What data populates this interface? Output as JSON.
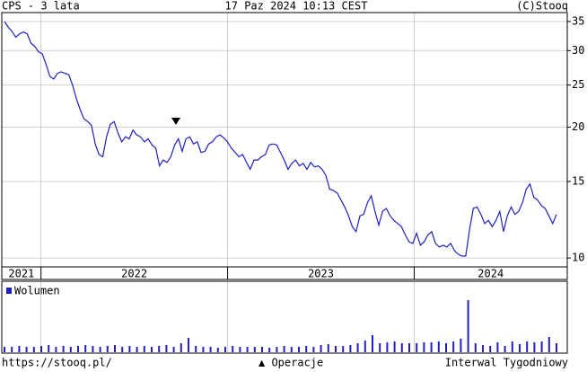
{
  "header": {
    "left": "CPS - 3 lata",
    "center": "17 Paz 2024 10:13 CEST",
    "right": "(C)Stooq"
  },
  "chart_data": [
    {
      "type": "line",
      "log_scale": true,
      "grid": true,
      "ylim": [
        9.54,
        36.7
      ],
      "yticks": [
        10,
        15,
        20,
        25,
        30,
        35
      ],
      "xlim": [
        2021.79,
        2024.82
      ],
      "xticks": [
        2021,
        2022,
        2023,
        2024
      ],
      "series": [
        {
          "color": "#2020c0",
          "values": [
            35.0,
            34.0,
            33.2,
            32.2,
            32.8,
            33.1,
            32.8,
            31.2,
            30.7,
            29.8,
            29.5,
            27.9,
            26.2,
            25.8,
            26.6,
            26.8,
            26.6,
            26.4,
            25.0,
            23.3,
            22.0,
            20.9,
            20.6,
            20.2,
            18.3,
            17.3,
            17.1,
            19.0,
            20.3,
            20.6,
            19.4,
            18.5,
            19.0,
            18.8,
            19.7,
            19.2,
            19.0,
            18.5,
            18.8,
            18.2,
            17.9,
            16.3,
            16.8,
            16.6,
            17.1,
            18.2,
            18.8,
            17.6,
            18.8,
            19.0,
            18.3,
            18.5,
            17.5,
            17.6,
            18.3,
            18.5,
            19.0,
            19.2,
            18.9,
            18.5,
            17.9,
            17.5,
            17.1,
            17.3,
            16.6,
            16.0,
            16.8,
            16.8,
            17.1,
            17.3,
            18.2,
            18.3,
            18.2,
            17.5,
            16.8,
            16.0,
            16.5,
            16.8,
            16.3,
            16.5,
            16.0,
            16.6,
            16.2,
            16.3,
            16.0,
            15.5,
            14.4,
            14.3,
            14.1,
            13.6,
            13.1,
            12.5,
            11.8,
            11.5,
            12.5,
            12.6,
            13.4,
            13.9,
            12.8,
            11.9,
            12.8,
            13.0,
            12.5,
            12.2,
            12.0,
            11.8,
            11.3,
            10.9,
            10.8,
            11.4,
            10.7,
            10.9,
            11.3,
            11.5,
            10.8,
            10.6,
            10.7,
            10.6,
            10.8,
            10.4,
            10.2,
            10.1,
            10.1,
            11.6,
            13.0,
            13.1,
            12.6,
            12.0,
            12.2,
            11.8,
            12.2,
            12.8,
            11.5,
            12.5,
            13.1,
            12.6,
            12.8,
            13.4,
            14.4,
            14.8,
            13.8,
            13.6,
            13.2,
            13.0,
            12.5,
            12.0,
            12.6
          ]
        }
      ]
    },
    {
      "type": "bar",
      "ylim": [
        0,
        60
      ],
      "series": [
        {
          "name": "Wolumen",
          "color": "#2020c0",
          "values": [
            6,
            6,
            7,
            6,
            6,
            7,
            8,
            6,
            7,
            6,
            7,
            8,
            7,
            6,
            7,
            8,
            6,
            7,
            6,
            7,
            6,
            7,
            8,
            6,
            10,
            16,
            7,
            6,
            6,
            5,
            6,
            7,
            6,
            6,
            6,
            6,
            5,
            6,
            7,
            6,
            6,
            7,
            6,
            8,
            9,
            7,
            7,
            8,
            10,
            13,
            19,
            10,
            11,
            12,
            10,
            10,
            10,
            11,
            11,
            12,
            10,
            12,
            15,
            58,
            10,
            8,
            7,
            11,
            7,
            12,
            9,
            12,
            11,
            12,
            17,
            10
          ]
        }
      ]
    }
  ],
  "footer": {
    "left": "https://stooq.pl/",
    "center": "▲ Operacje",
    "right": "Interwal Tygodniowy"
  }
}
